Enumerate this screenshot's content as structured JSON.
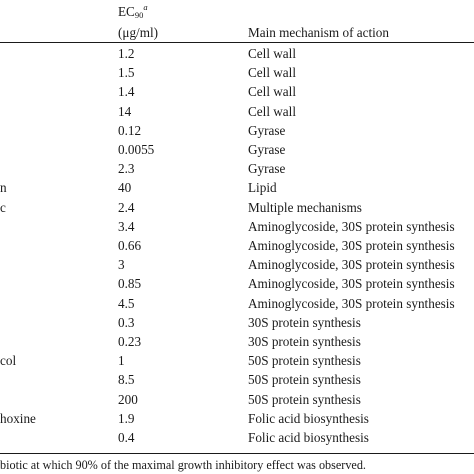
{
  "header": {
    "ec_label": "EC",
    "ec_subscript": "90",
    "ec_superscript": "a",
    "unit": "(μg/ml)",
    "mechanism": "Main mechanism of action"
  },
  "rows": [
    {
      "name": "",
      "ec90": "1.2",
      "mechanism": "Cell wall"
    },
    {
      "name": "",
      "ec90": "1.5",
      "mechanism": "Cell wall"
    },
    {
      "name": "",
      "ec90": "1.4",
      "mechanism": "Cell wall"
    },
    {
      "name": "",
      "ec90": "14",
      "mechanism": "Cell wall"
    },
    {
      "name": "",
      "ec90": "0.12",
      "mechanism": "Gyrase"
    },
    {
      "name": "",
      "ec90": "0.0055",
      "mechanism": "Gyrase"
    },
    {
      "name": "",
      "ec90": "2.3",
      "mechanism": "Gyrase"
    },
    {
      "name": "n",
      "ec90": "40",
      "mechanism": "Lipid"
    },
    {
      "name": "c",
      "ec90": "2.4",
      "mechanism": "Multiple mechanisms"
    },
    {
      "name": "",
      "ec90": "3.4",
      "mechanism": "Aminoglycoside, 30S protein synthesis"
    },
    {
      "name": "",
      "ec90": "0.66",
      "mechanism": "Aminoglycoside, 30S protein synthesis"
    },
    {
      "name": "",
      "ec90": "3",
      "mechanism": "Aminoglycoside, 30S protein synthesis"
    },
    {
      "name": "",
      "ec90": "0.85",
      "mechanism": "Aminoglycoside, 30S protein synthesis"
    },
    {
      "name": "",
      "ec90": "4.5",
      "mechanism": "Aminoglycoside, 30S protein synthesis"
    },
    {
      "name": "",
      "ec90": "0.3",
      "mechanism": "30S protein synthesis"
    },
    {
      "name": "",
      "ec90": "0.23",
      "mechanism": "30S protein synthesis"
    },
    {
      "name": "col",
      "ec90": "1",
      "mechanism": "50S protein synthesis"
    },
    {
      "name": "",
      "ec90": "8.5",
      "mechanism": "50S protein synthesis"
    },
    {
      "name": "",
      "ec90": "200",
      "mechanism": "50S protein synthesis"
    },
    {
      "name": "hoxine",
      "ec90": "1.9",
      "mechanism": "Folic acid biosynthesis"
    },
    {
      "name": "",
      "ec90": "0.4",
      "mechanism": "Folic acid biosynthesis"
    }
  ],
  "footnote": "biotic at which 90% of the maximal growth inhibitory effect was observed."
}
